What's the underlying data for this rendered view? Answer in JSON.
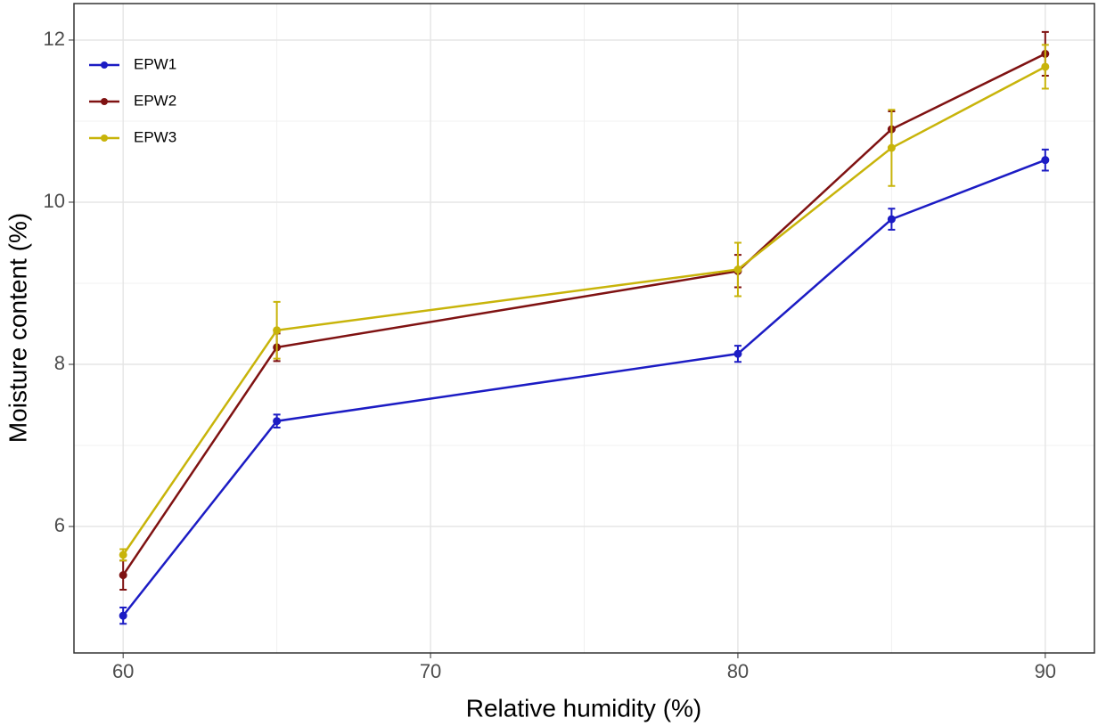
{
  "chart_data": {
    "type": "line",
    "x_label": "Relative humidity (%)",
    "y_label": "Moisture content (%)",
    "x": [
      60,
      65,
      80,
      85,
      90
    ],
    "series": [
      {
        "name": "EPW1",
        "color": "#1c1cc4",
        "values": [
          4.9,
          7.3,
          8.13,
          9.79,
          10.52
        ],
        "errors": [
          0.1,
          0.08,
          0.1,
          0.13,
          0.13
        ]
      },
      {
        "name": "EPW2",
        "color": "#7f1212",
        "values": [
          5.4,
          8.21,
          9.15,
          10.9,
          11.83
        ],
        "errors": [
          0.18,
          0.17,
          0.2,
          0.22,
          0.27
        ]
      },
      {
        "name": "EPW3",
        "color": "#c8b40a",
        "values": [
          5.65,
          8.42,
          9.17,
          10.67,
          11.67
        ],
        "errors": [
          0.07,
          0.35,
          0.33,
          0.47,
          0.27
        ]
      }
    ],
    "xlim": [
      58.4,
      91.6
    ],
    "xticks": [
      60,
      70,
      80,
      90
    ],
    "ylim": [
      4.44,
      12.45
    ],
    "yticks": [
      6,
      8,
      10,
      12
    ],
    "grid": true,
    "legend_position": "top-left"
  }
}
